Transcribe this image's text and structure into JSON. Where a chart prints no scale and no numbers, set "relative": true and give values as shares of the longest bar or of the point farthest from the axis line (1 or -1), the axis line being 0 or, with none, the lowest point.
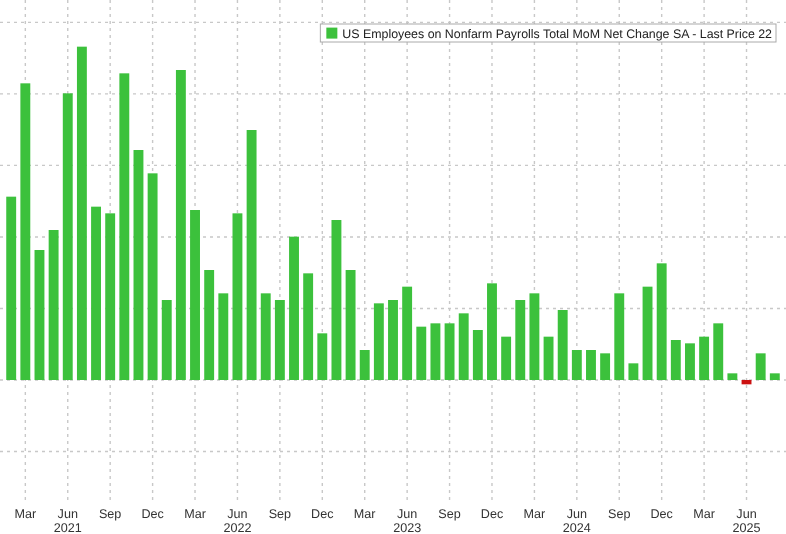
{
  "chart_data": {
    "type": "bar",
    "relative": true,
    "grid": true,
    "legend": "top right",
    "categories": [
      null,
      "Mar",
      null,
      null,
      "Jun\n2021",
      null,
      null,
      "Sep",
      null,
      null,
      "Dec",
      null,
      null,
      "Mar",
      null,
      null,
      "Jun\n2022",
      null,
      null,
      "Sep",
      null,
      null,
      "Dec",
      null,
      null,
      "Mar",
      null,
      null,
      "Jun\n2023",
      null,
      null,
      "Sep",
      null,
      null,
      "Dec",
      null,
      null,
      "Mar",
      null,
      null,
      "Jun\n2024",
      null,
      null,
      "Sep",
      null,
      null,
      "Dec",
      null,
      null,
      "Mar",
      null,
      null,
      "Jun\n2025",
      null,
      null
    ],
    "series": [
      {
        "name": "US Employees on Nonfarm Payrolls Total MoM Net Change SA - Last Price 22",
        "color": "#3cc13c",
        "values": [
          0.55,
          0.89,
          0.39,
          0.45,
          0.86,
          1,
          0.52,
          0.5,
          0.92,
          0.69,
          0.62,
          0.24,
          0.93,
          0.51,
          0.33,
          0.26,
          0.5,
          0.75,
          0.26,
          0.24,
          0.43,
          0.32,
          0.14,
          0.48,
          0.33,
          0.09,
          0.23,
          0.24,
          0.28,
          0.16,
          0.17,
          0.17,
          0.2,
          0.15,
          0.29,
          0.13,
          0.24,
          0.26,
          0.13,
          0.21,
          0.09,
          0.09,
          0.08,
          0.26,
          0.05,
          0.28,
          0.35,
          0.12,
          0.11,
          0.13,
          0.17,
          0.02,
          -0.013,
          0.08,
          0.02
        ],
        "colors": [
          "#3cc13c",
          "#3cc13c",
          "#3cc13c",
          "#3cc13c",
          "#3cc13c",
          "#3cc13c",
          "#3cc13c",
          "#3cc13c",
          "#3cc13c",
          "#3cc13c",
          "#3cc13c",
          "#3cc13c",
          "#3cc13c",
          "#3cc13c",
          "#3cc13c",
          "#3cc13c",
          "#3cc13c",
          "#3cc13c",
          "#3cc13c",
          "#3cc13c",
          "#3cc13c",
          "#3cc13c",
          "#3cc13c",
          "#3cc13c",
          "#3cc13c",
          "#3cc13c",
          "#3cc13c",
          "#3cc13c",
          "#3cc13c",
          "#3cc13c",
          "#3cc13c",
          "#3cc13c",
          "#3cc13c",
          "#3cc13c",
          "#3cc13c",
          "#3cc13c",
          "#3cc13c",
          "#3cc13c",
          "#3cc13c",
          "#3cc13c",
          "#3cc13c",
          "#3cc13c",
          "#3cc13c",
          "#3cc13c",
          "#3cc13c",
          "#3cc13c",
          "#3cc13c",
          "#3cc13c",
          "#3cc13c",
          "#3cc13c",
          "#3cc13c",
          "#3cc13c",
          "#cc1111",
          "#3cc13c",
          "#3cc13c"
        ]
      }
    ]
  }
}
